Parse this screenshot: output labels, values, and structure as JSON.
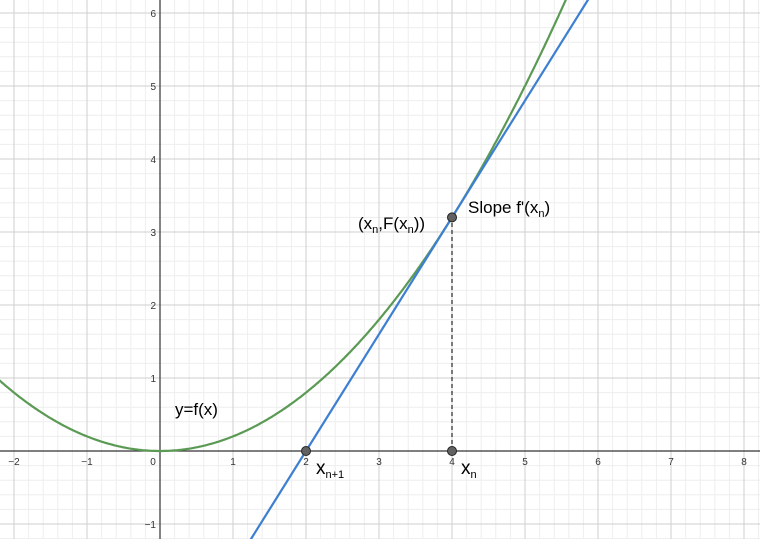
{
  "chart_data": {
    "type": "line",
    "xlim": [
      -2.2,
      8.2
    ],
    "ylim": [
      -1.2,
      6.2
    ],
    "grid": true,
    "x_ticks": [
      -2,
      -1,
      0,
      1,
      2,
      3,
      4,
      5,
      6,
      7,
      8
    ],
    "y_ticks": [
      -1,
      1,
      2,
      3,
      4,
      5,
      6
    ],
    "curve": {
      "expression": "y = 0.2x^2",
      "a": 0.2,
      "color": "#5b9a54"
    },
    "tangent": {
      "x0": 4,
      "y0": 3.2,
      "slope": 1.6,
      "color": "#3d7fd1"
    },
    "points": [
      {
        "x": 4,
        "y": 3.2
      },
      {
        "x": 2,
        "y": 0
      },
      {
        "x": 4,
        "y": 0
      }
    ],
    "dashed_segment": {
      "x": 4,
      "from_y": 0,
      "to_y": 3.2
    }
  },
  "labels": {
    "curve": "y=f(x)",
    "slope_prefix": "Slope f'(x",
    "slope_sub": "n",
    "slope_suffix": ")",
    "point_open": "(x",
    "point_sub1": "n",
    "point_mid": ",F(x",
    "point_sub2": "n",
    "point_close": "))",
    "xn1_base": "x",
    "xn1_sub": "n+1",
    "xn_base": "x",
    "xn_sub": "n"
  }
}
